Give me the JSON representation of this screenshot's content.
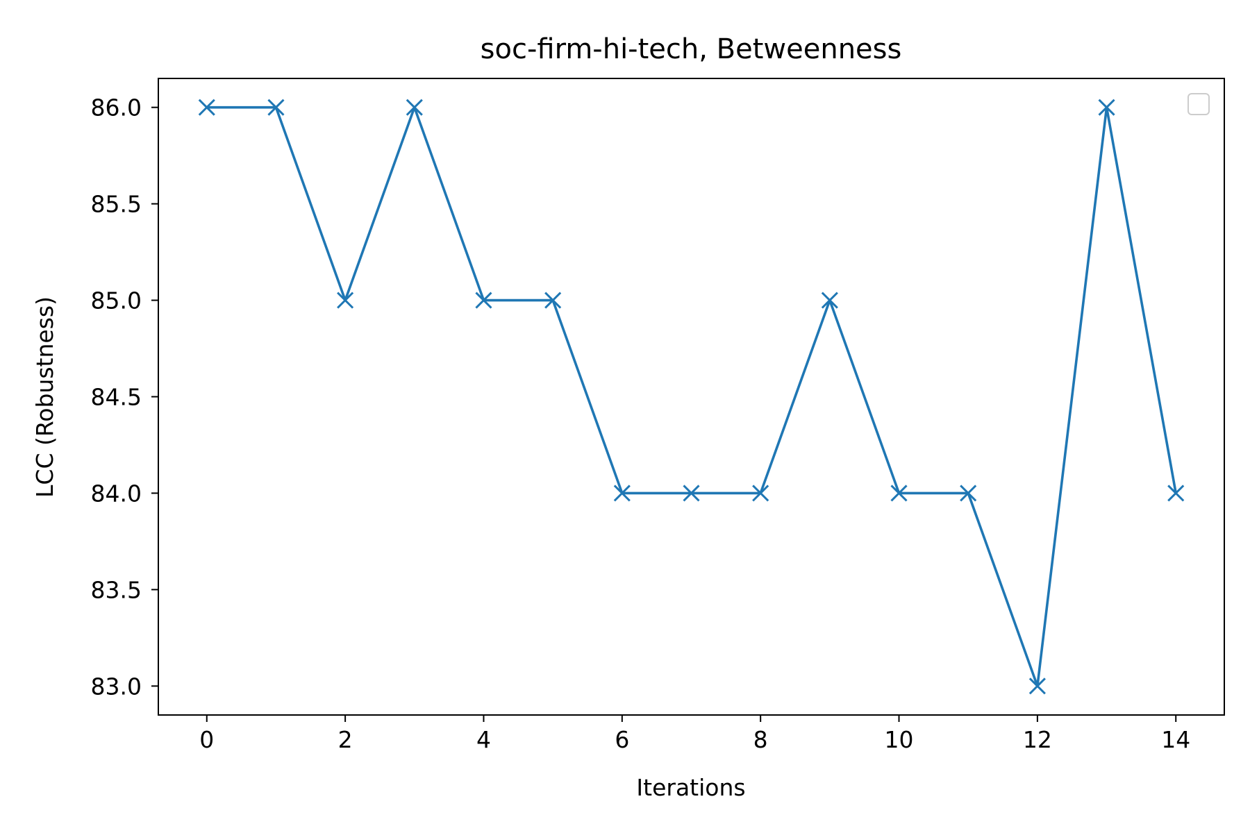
{
  "chart_data": {
    "type": "line",
    "title": "soc-firm-hi-tech, Betweenness",
    "xlabel": "Iterations",
    "ylabel": "LCC (Robustness)",
    "x": [
      0,
      1,
      2,
      3,
      4,
      5,
      6,
      7,
      8,
      9,
      10,
      11,
      12,
      13,
      14
    ],
    "series": [
      {
        "values": [
          86,
          86,
          85,
          86,
          85,
          85,
          84,
          84,
          84,
          85,
          84,
          84,
          83,
          86,
          84
        ],
        "color": "#1f77b4",
        "marker": "x"
      }
    ],
    "xlim": [
      -0.7,
      14.7
    ],
    "ylim": [
      82.85,
      86.15
    ],
    "xticks": [
      0,
      2,
      4,
      6,
      8,
      10,
      12,
      14
    ],
    "xtick_labels": [
      "0",
      "2",
      "4",
      "6",
      "8",
      "10",
      "12",
      "14"
    ],
    "yticks": [
      83.0,
      83.5,
      84.0,
      84.5,
      85.0,
      85.5,
      86.0
    ],
    "ytick_labels": [
      "83.0",
      "83.5",
      "84.0",
      "84.5",
      "85.0",
      "85.5",
      "86.0"
    ],
    "grid": false,
    "legend": {
      "placement": "top-right",
      "entries": []
    }
  }
}
